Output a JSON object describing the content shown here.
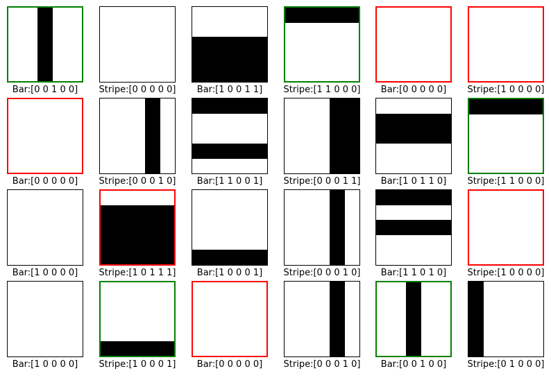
{
  "panels": [
    {
      "label": "Bar:[0 0 1 0 0]",
      "kind": "bar",
      "bits": [
        0,
        0,
        1,
        0,
        0
      ],
      "frame": "green"
    },
    {
      "label": "Stripe:[0 0 0 0 0]",
      "kind": "stripe",
      "bits": [
        0,
        0,
        0,
        0,
        0
      ],
      "frame": "black"
    },
    {
      "label": "Bar:[1 0 0 1 1]",
      "kind": "stripe",
      "bits": [
        0,
        0,
        1,
        1,
        1
      ],
      "frame": "black"
    },
    {
      "label": "Stripe:[1 1 0 0 0]",
      "kind": "stripe",
      "bits": [
        1,
        0,
        0,
        0,
        0
      ],
      "frame": "green"
    },
    {
      "label": "Bar:[0 0 0 0 0]",
      "kind": "bar",
      "bits": [
        0,
        0,
        0,
        0,
        0
      ],
      "frame": "red"
    },
    {
      "label": "Stripe:[1 0 0 0 0]",
      "kind": "stripe",
      "bits": [
        0,
        0,
        0,
        0,
        0
      ],
      "frame": "red"
    },
    {
      "label": "Bar:[0 0 0 0 0]",
      "kind": "bar",
      "bits": [
        0,
        0,
        0,
        0,
        0
      ],
      "frame": "red"
    },
    {
      "label": "Stripe:[0 0 0 1 0]",
      "kind": "bar",
      "bits": [
        0,
        0,
        0,
        1,
        0
      ],
      "frame": "black"
    },
    {
      "label": "Bar:[1 1 0 0 1]",
      "kind": "stripe",
      "bits": [
        1,
        0,
        0,
        1,
        0
      ],
      "frame": "black"
    },
    {
      "label": "Stripe:[0 0 0 1 1]",
      "kind": "bar",
      "bits": [
        0,
        0,
        0,
        1,
        1
      ],
      "frame": "black"
    },
    {
      "label": "Bar:[1 0 1 1 0]",
      "kind": "stripe",
      "bits": [
        0,
        1,
        1,
        0,
        0
      ],
      "frame": "black"
    },
    {
      "label": "Stripe:[1 1 0 0 0]",
      "kind": "stripe",
      "bits": [
        1,
        0,
        0,
        0,
        0
      ],
      "frame": "green"
    },
    {
      "label": "Bar:[1 0 0 0 0]",
      "kind": "bar",
      "bits": [
        0,
        0,
        0,
        0,
        0
      ],
      "frame": "black"
    },
    {
      "label": "Stripe:[1 0 1 1 1]",
      "kind": "stripe",
      "bits": [
        0,
        1,
        1,
        1,
        1
      ],
      "frame": "red"
    },
    {
      "label": "Bar:[1 0 0 0 1]",
      "kind": "stripe",
      "bits": [
        0,
        0,
        0,
        0,
        1
      ],
      "frame": "black"
    },
    {
      "label": "Stripe:[0 0 0 1 0]",
      "kind": "bar",
      "bits": [
        0,
        0,
        0,
        1,
        0
      ],
      "frame": "black"
    },
    {
      "label": "Bar:[1 1 0 1 0]",
      "kind": "stripe",
      "bits": [
        1,
        0,
        1,
        0,
        0
      ],
      "frame": "black"
    },
    {
      "label": "Stripe:[1 0 0 0 0]",
      "kind": "stripe",
      "bits": [
        0,
        0,
        0,
        0,
        0
      ],
      "frame": "red"
    },
    {
      "label": "Bar:[1 0 0 0 0]",
      "kind": "bar",
      "bits": [
        0,
        0,
        0,
        0,
        0
      ],
      "frame": "black"
    },
    {
      "label": "Stripe:[1 0 0 0 1]",
      "kind": "stripe",
      "bits": [
        0,
        0,
        0,
        0,
        1
      ],
      "frame": "green"
    },
    {
      "label": "Bar:[0 0 0 0 0]",
      "kind": "bar",
      "bits": [
        0,
        0,
        0,
        0,
        0
      ],
      "frame": "red"
    },
    {
      "label": "Stripe:[0 0 0 1 0]",
      "kind": "bar",
      "bits": [
        0,
        0,
        0,
        1,
        0
      ],
      "frame": "black"
    },
    {
      "label": "Bar:[0 0 1 0 0]",
      "kind": "bar",
      "bits": [
        0,
        0,
        1,
        0,
        0
      ],
      "frame": "green"
    },
    {
      "label": "Stripe:[0 1 0 0 0]",
      "kind": "bar",
      "bits": [
        1,
        0,
        0,
        0,
        0
      ],
      "frame": "black"
    }
  ],
  "colors": {
    "green": "#008000",
    "red": "#ff0000",
    "black": "#000000",
    "fill": "#000000"
  }
}
